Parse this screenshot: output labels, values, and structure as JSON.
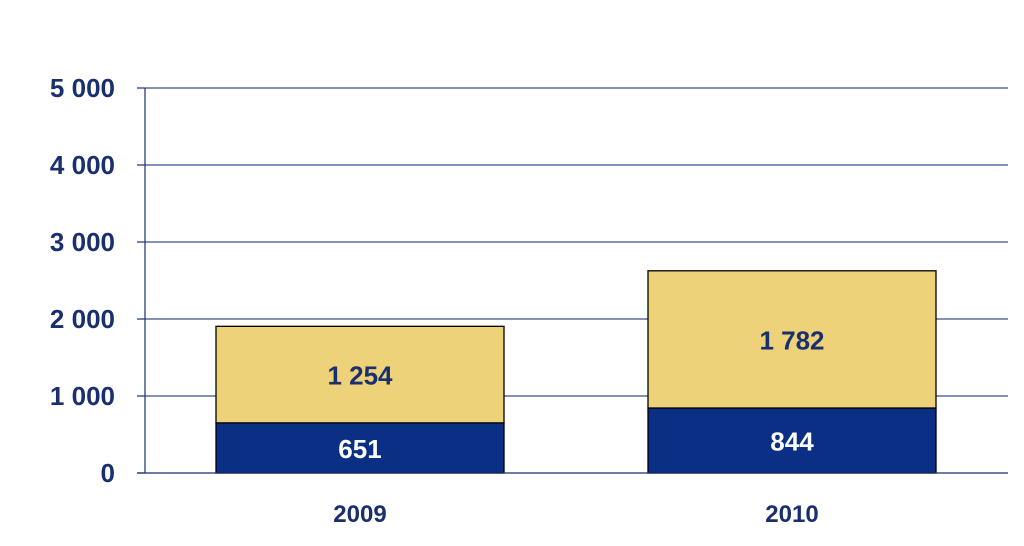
{
  "chart_data": {
    "type": "bar",
    "stacked": true,
    "title": "",
    "xlabel": "",
    "ylabel": "",
    "categories": [
      "2009",
      "2010"
    ],
    "ylim": [
      0,
      5000
    ],
    "yticks": [
      0,
      1000,
      2000,
      3000,
      4000,
      5000
    ],
    "ytick_labels": [
      "0",
      "1 000",
      "2 000",
      "3 000",
      "4 000",
      "5 000"
    ],
    "grid": true,
    "legend": "none",
    "series": [
      {
        "values": [
          651,
          844
        ],
        "labels": [
          "651",
          "844"
        ],
        "color": "#0a2f85",
        "label_color": "#ffffff"
      },
      {
        "values": [
          1254,
          1782
        ],
        "labels": [
          "1 254",
          "1 782"
        ],
        "color": "#edd27a",
        "label_color": "#1a2f6e"
      }
    ],
    "axis_color": "#1a2f6e",
    "grid_color": "#3a4f8a"
  }
}
